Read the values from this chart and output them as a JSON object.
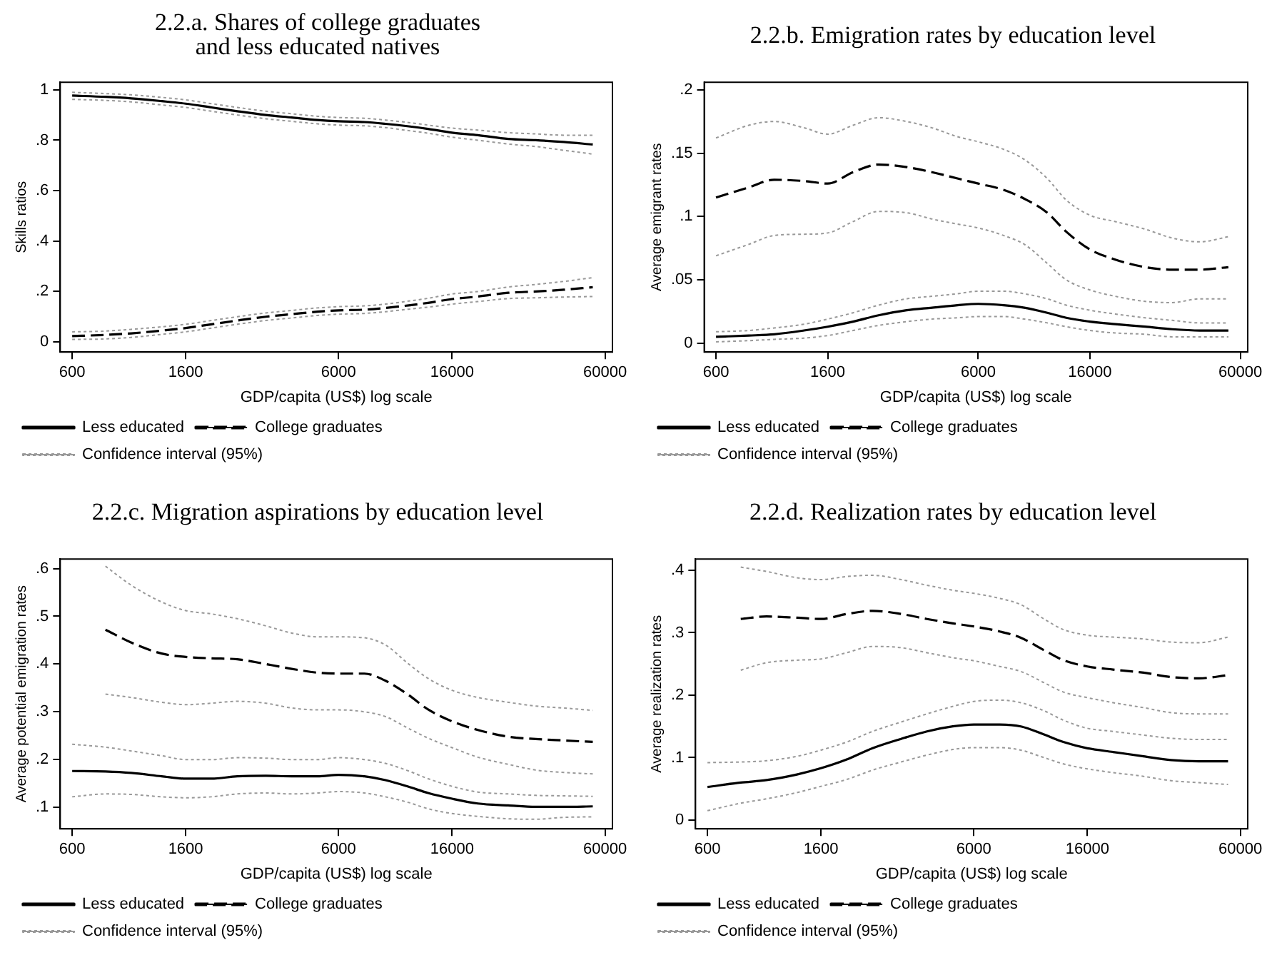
{
  "chart_data": [
    {
      "type": "line",
      "title": "2.2.a. Shares of college graduates and less educated natives",
      "xlabel": "GDP/capita (US$) log scale",
      "ylabel": "Skills ratios",
      "log": "x",
      "legend": "bottom",
      "x": [
        600,
        800,
        1000,
        1300,
        1600,
        2000,
        2500,
        3200,
        4000,
        5000,
        6000,
        7500,
        9000,
        11000,
        13000,
        16000,
        20000,
        26000,
        33000,
        42000,
        54000
      ],
      "xlim": [
        541,
        64000
      ],
      "xticks": [
        600,
        1600,
        6000,
        16000,
        60000
      ],
      "ylim": [
        -0.04,
        1.03
      ],
      "yticks": [
        {
          "value": 0,
          "label": "0"
        },
        {
          "value": 0.2,
          "label": ".2"
        },
        {
          "value": 0.4,
          "label": ".4"
        },
        {
          "value": 0.6,
          "label": ".6"
        },
        {
          "value": 0.8,
          "label": ".8"
        },
        {
          "value": 1,
          "label": "1"
        }
      ],
      "series": [
        {
          "name": "Less educated",
          "color": "#000000",
          "line_style": "solid",
          "values": [
            0.977,
            0.972,
            0.966,
            0.955,
            0.945,
            0.93,
            0.915,
            0.9,
            0.89,
            0.88,
            0.875,
            0.872,
            0.865,
            0.855,
            0.845,
            0.83,
            0.82,
            0.805,
            0.8,
            0.793,
            0.783
          ]
        },
        {
          "name": "College graduates",
          "color": "#000000",
          "line_style": "dashed",
          "values": [
            0.023,
            0.028,
            0.034,
            0.045,
            0.055,
            0.07,
            0.085,
            0.1,
            0.11,
            0.12,
            0.125,
            0.128,
            0.135,
            0.145,
            0.155,
            0.17,
            0.18,
            0.195,
            0.2,
            0.207,
            0.217
          ]
        },
        {
          "name": "Confidence interval (95%)",
          "color": "#999999",
          "line_style": "dotted",
          "values": [
            0.99,
            0.985,
            0.98,
            0.97,
            0.96,
            0.945,
            0.93,
            0.915,
            0.905,
            0.895,
            0.89,
            0.887,
            0.88,
            0.87,
            0.86,
            0.848,
            0.84,
            0.83,
            0.825,
            0.82,
            0.82
          ]
        },
        {
          "color": "#999999",
          "line_style": "dotted",
          "values": [
            0.962,
            0.958,
            0.952,
            0.94,
            0.93,
            0.915,
            0.9,
            0.885,
            0.875,
            0.865,
            0.86,
            0.857,
            0.85,
            0.838,
            0.828,
            0.812,
            0.8,
            0.785,
            0.775,
            0.76,
            0.745
          ]
        },
        {
          "color": "#999999",
          "line_style": "dotted",
          "values": [
            0.04,
            0.043,
            0.05,
            0.06,
            0.07,
            0.085,
            0.1,
            0.115,
            0.125,
            0.135,
            0.14,
            0.143,
            0.15,
            0.162,
            0.173,
            0.19,
            0.2,
            0.218,
            0.228,
            0.24,
            0.255
          ]
        },
        {
          "color": "#999999",
          "line_style": "dotted",
          "values": [
            0.01,
            0.012,
            0.018,
            0.03,
            0.04,
            0.055,
            0.07,
            0.085,
            0.095,
            0.105,
            0.11,
            0.113,
            0.12,
            0.13,
            0.138,
            0.15,
            0.16,
            0.172,
            0.175,
            0.178,
            0.18
          ]
        }
      ]
    },
    {
      "type": "line",
      "title": "2.2.b. Emigration rates by education level",
      "xlabel": "GDP/capita (US$) log scale",
      "ylabel": "Average emigrant rates",
      "log": "x",
      "legend": "bottom",
      "x": [
        600,
        800,
        1000,
        1300,
        1600,
        2000,
        2500,
        3200,
        4000,
        5000,
        6000,
        7500,
        9000,
        11000,
        13000,
        16000,
        20000,
        26000,
        33000,
        42000,
        54000
      ],
      "xlim": [
        541,
        64000
      ],
      "xticks": [
        600,
        1600,
        6000,
        16000,
        60000
      ],
      "ylim": [
        -0.007,
        0.206
      ],
      "yticks": [
        {
          "value": 0,
          "label": "0"
        },
        {
          "value": 0.05,
          "label": ".05"
        },
        {
          "value": 0.1,
          "label": ".1"
        },
        {
          "value": 0.15,
          "label": ".15"
        },
        {
          "value": 0.2,
          "label": ".2"
        }
      ],
      "series": [
        {
          "name": "Less educated",
          "color": "#000000",
          "line_style": "solid",
          "values": [
            0.005,
            0.006,
            0.007,
            0.01,
            0.013,
            0.017,
            0.022,
            0.026,
            0.028,
            0.03,
            0.031,
            0.03,
            0.028,
            0.024,
            0.02,
            0.017,
            0.015,
            0.013,
            0.011,
            0.01,
            0.01
          ]
        },
        {
          "name": "College graduates",
          "color": "#000000",
          "line_style": "dashed",
          "values": [
            0.115,
            0.123,
            0.129,
            0.128,
            0.126,
            0.135,
            0.141,
            0.139,
            0.135,
            0.13,
            0.126,
            0.121,
            0.114,
            0.103,
            0.088,
            0.074,
            0.066,
            0.06,
            0.058,
            0.058,
            0.06
          ]
        },
        {
          "name": "Confidence interval (95%)",
          "color": "#999999",
          "line_style": "dotted",
          "values": [
            0.009,
            0.01,
            0.012,
            0.015,
            0.019,
            0.024,
            0.03,
            0.035,
            0.037,
            0.039,
            0.041,
            0.041,
            0.039,
            0.035,
            0.03,
            0.026,
            0.023,
            0.02,
            0.018,
            0.016,
            0.016
          ]
        },
        {
          "color": "#999999",
          "line_style": "dotted",
          "values": [
            0.001,
            0.002,
            0.003,
            0.004,
            0.006,
            0.01,
            0.014,
            0.017,
            0.019,
            0.02,
            0.021,
            0.021,
            0.019,
            0.016,
            0.013,
            0.01,
            0.008,
            0.007,
            0.005,
            0.005,
            0.005
          ]
        },
        {
          "color": "#999999",
          "line_style": "dotted",
          "values": [
            0.162,
            0.172,
            0.175,
            0.17,
            0.165,
            0.172,
            0.178,
            0.175,
            0.17,
            0.163,
            0.159,
            0.153,
            0.145,
            0.13,
            0.113,
            0.101,
            0.096,
            0.09,
            0.083,
            0.08,
            0.084
          ]
        },
        {
          "color": "#999999",
          "line_style": "dotted",
          "values": [
            0.069,
            0.078,
            0.085,
            0.086,
            0.087,
            0.096,
            0.104,
            0.103,
            0.098,
            0.094,
            0.091,
            0.085,
            0.078,
            0.063,
            0.05,
            0.042,
            0.037,
            0.033,
            0.032,
            0.035,
            0.035
          ]
        }
      ]
    },
    {
      "type": "line",
      "title": "2.2.c. Migration aspirations by education level",
      "xlabel": "GDP/capita (US$) log scale",
      "ylabel": "Average potential emigration rates",
      "log": "x",
      "legend": "bottom",
      "x": [
        600,
        800,
        1000,
        1300,
        1600,
        2000,
        2500,
        3200,
        4000,
        5000,
        6000,
        7500,
        9000,
        11000,
        13000,
        16000,
        20000,
        26000,
        33000,
        42000,
        54000
      ],
      "xlim": [
        541,
        64000
      ],
      "xticks": [
        600,
        1600,
        6000,
        16000,
        60000
      ],
      "ylim": [
        0.055,
        0.62
      ],
      "yticks": [
        {
          "value": 0.1,
          "label": ".1"
        },
        {
          "value": 0.2,
          "label": ".2"
        },
        {
          "value": 0.3,
          "label": ".3"
        },
        {
          "value": 0.4,
          "label": ".4"
        },
        {
          "value": 0.5,
          "label": ".5"
        },
        {
          "value": 0.6,
          "label": ".6"
        }
      ],
      "series": [
        {
          "name": "Less educated",
          "color": "#000000",
          "line_style": "solid",
          "values": [
            0.176,
            0.175,
            0.172,
            0.165,
            0.16,
            0.16,
            0.165,
            0.166,
            0.165,
            0.165,
            0.168,
            0.165,
            0.157,
            0.143,
            0.13,
            0.118,
            0.108,
            0.104,
            0.101,
            0.101,
            0.102
          ]
        },
        {
          "name": "College graduates",
          "color": "#000000",
          "line_style": "dashed",
          "values": [
            null,
            0.472,
            0.445,
            0.422,
            0.415,
            0.412,
            0.41,
            0.4,
            0.39,
            0.382,
            0.38,
            0.38,
            0.365,
            0.335,
            0.305,
            0.28,
            0.262,
            0.248,
            0.243,
            0.24,
            0.237
          ]
        },
        {
          "name": "Confidence interval (95%)",
          "color": "#999999",
          "line_style": "dotted",
          "values": [
            0.232,
            0.226,
            0.218,
            0.208,
            0.2,
            0.2,
            0.204,
            0.203,
            0.2,
            0.2,
            0.204,
            0.2,
            0.192,
            0.176,
            0.16,
            0.144,
            0.132,
            0.128,
            0.125,
            0.124,
            0.123
          ]
        },
        {
          "color": "#999999",
          "line_style": "dotted",
          "values": [
            0.122,
            0.128,
            0.127,
            0.122,
            0.12,
            0.122,
            0.128,
            0.13,
            0.128,
            0.13,
            0.133,
            0.13,
            0.122,
            0.11,
            0.097,
            0.087,
            0.081,
            0.076,
            0.075,
            0.079,
            0.08
          ]
        },
        {
          "color": "#999999",
          "line_style": "dotted",
          "values": [
            null,
            0.605,
            0.565,
            0.53,
            0.512,
            0.505,
            0.495,
            0.48,
            0.465,
            0.457,
            0.457,
            0.455,
            0.44,
            0.4,
            0.37,
            0.345,
            0.33,
            0.32,
            0.312,
            0.308,
            0.303
          ]
        },
        {
          "color": "#999999",
          "line_style": "dotted",
          "values": [
            null,
            0.337,
            0.33,
            0.32,
            0.315,
            0.318,
            0.322,
            0.318,
            0.308,
            0.304,
            0.304,
            0.3,
            0.29,
            0.265,
            0.245,
            0.225,
            0.205,
            0.19,
            0.178,
            0.173,
            0.17
          ]
        }
      ]
    },
    {
      "type": "line",
      "title": "2.2.d. Realization rates by education level",
      "xlabel": "GDP/capita (US$) log scale",
      "ylabel": "Average realization rates",
      "log": "x",
      "legend": "bottom",
      "x": [
        600,
        800,
        1000,
        1300,
        1600,
        2000,
        2500,
        3200,
        4000,
        5000,
        6000,
        7500,
        9000,
        11000,
        13000,
        16000,
        20000,
        26000,
        33000,
        42000,
        54000
      ],
      "xlim": [
        541,
        64000
      ],
      "xticks": [
        600,
        1600,
        6000,
        16000,
        60000
      ],
      "ylim": [
        -0.014,
        0.418
      ],
      "yticks": [
        {
          "value": 0,
          "label": "0"
        },
        {
          "value": 0.1,
          "label": ".1"
        },
        {
          "value": 0.2,
          "label": ".2"
        },
        {
          "value": 0.3,
          "label": ".3"
        },
        {
          "value": 0.4,
          "label": ".4"
        }
      ],
      "series": [
        {
          "name": "Less educated",
          "color": "#000000",
          "line_style": "solid",
          "values": [
            0.053,
            0.06,
            0.064,
            0.073,
            0.083,
            0.097,
            0.115,
            0.13,
            0.142,
            0.15,
            0.153,
            0.153,
            0.15,
            0.137,
            0.125,
            0.115,
            0.109,
            0.102,
            0.096,
            0.094,
            0.094
          ]
        },
        {
          "name": "College graduates",
          "color": "#000000",
          "line_style": "dashed",
          "values": [
            null,
            0.322,
            0.326,
            0.324,
            0.322,
            0.33,
            0.335,
            0.33,
            0.322,
            0.315,
            0.31,
            0.302,
            0.292,
            0.272,
            0.256,
            0.246,
            0.241,
            0.236,
            0.229,
            0.227,
            0.232
          ]
        },
        {
          "name": "Confidence interval (95%)",
          "color": "#999999",
          "line_style": "dotted",
          "values": [
            0.092,
            0.093,
            0.095,
            0.102,
            0.112,
            0.125,
            0.142,
            0.157,
            0.17,
            0.182,
            0.19,
            0.192,
            0.188,
            0.175,
            0.16,
            0.147,
            0.142,
            0.136,
            0.131,
            0.129,
            0.129
          ]
        },
        {
          "color": "#999999",
          "line_style": "dotted",
          "values": [
            0.015,
            0.027,
            0.034,
            0.044,
            0.054,
            0.065,
            0.08,
            0.093,
            0.104,
            0.113,
            0.116,
            0.116,
            0.112,
            0.1,
            0.09,
            0.082,
            0.076,
            0.07,
            0.063,
            0.06,
            0.057
          ]
        },
        {
          "color": "#999999",
          "line_style": "dotted",
          "values": [
            null,
            0.405,
            0.398,
            0.388,
            0.385,
            0.39,
            0.392,
            0.385,
            0.376,
            0.368,
            0.363,
            0.355,
            0.345,
            0.322,
            0.305,
            0.296,
            0.293,
            0.29,
            0.285,
            0.284,
            0.293
          ]
        },
        {
          "color": "#999999",
          "line_style": "dotted",
          "values": [
            null,
            0.24,
            0.252,
            0.256,
            0.258,
            0.268,
            0.278,
            0.276,
            0.268,
            0.26,
            0.255,
            0.246,
            0.238,
            0.22,
            0.205,
            0.196,
            0.188,
            0.18,
            0.172,
            0.17,
            0.17
          ]
        }
      ]
    }
  ]
}
